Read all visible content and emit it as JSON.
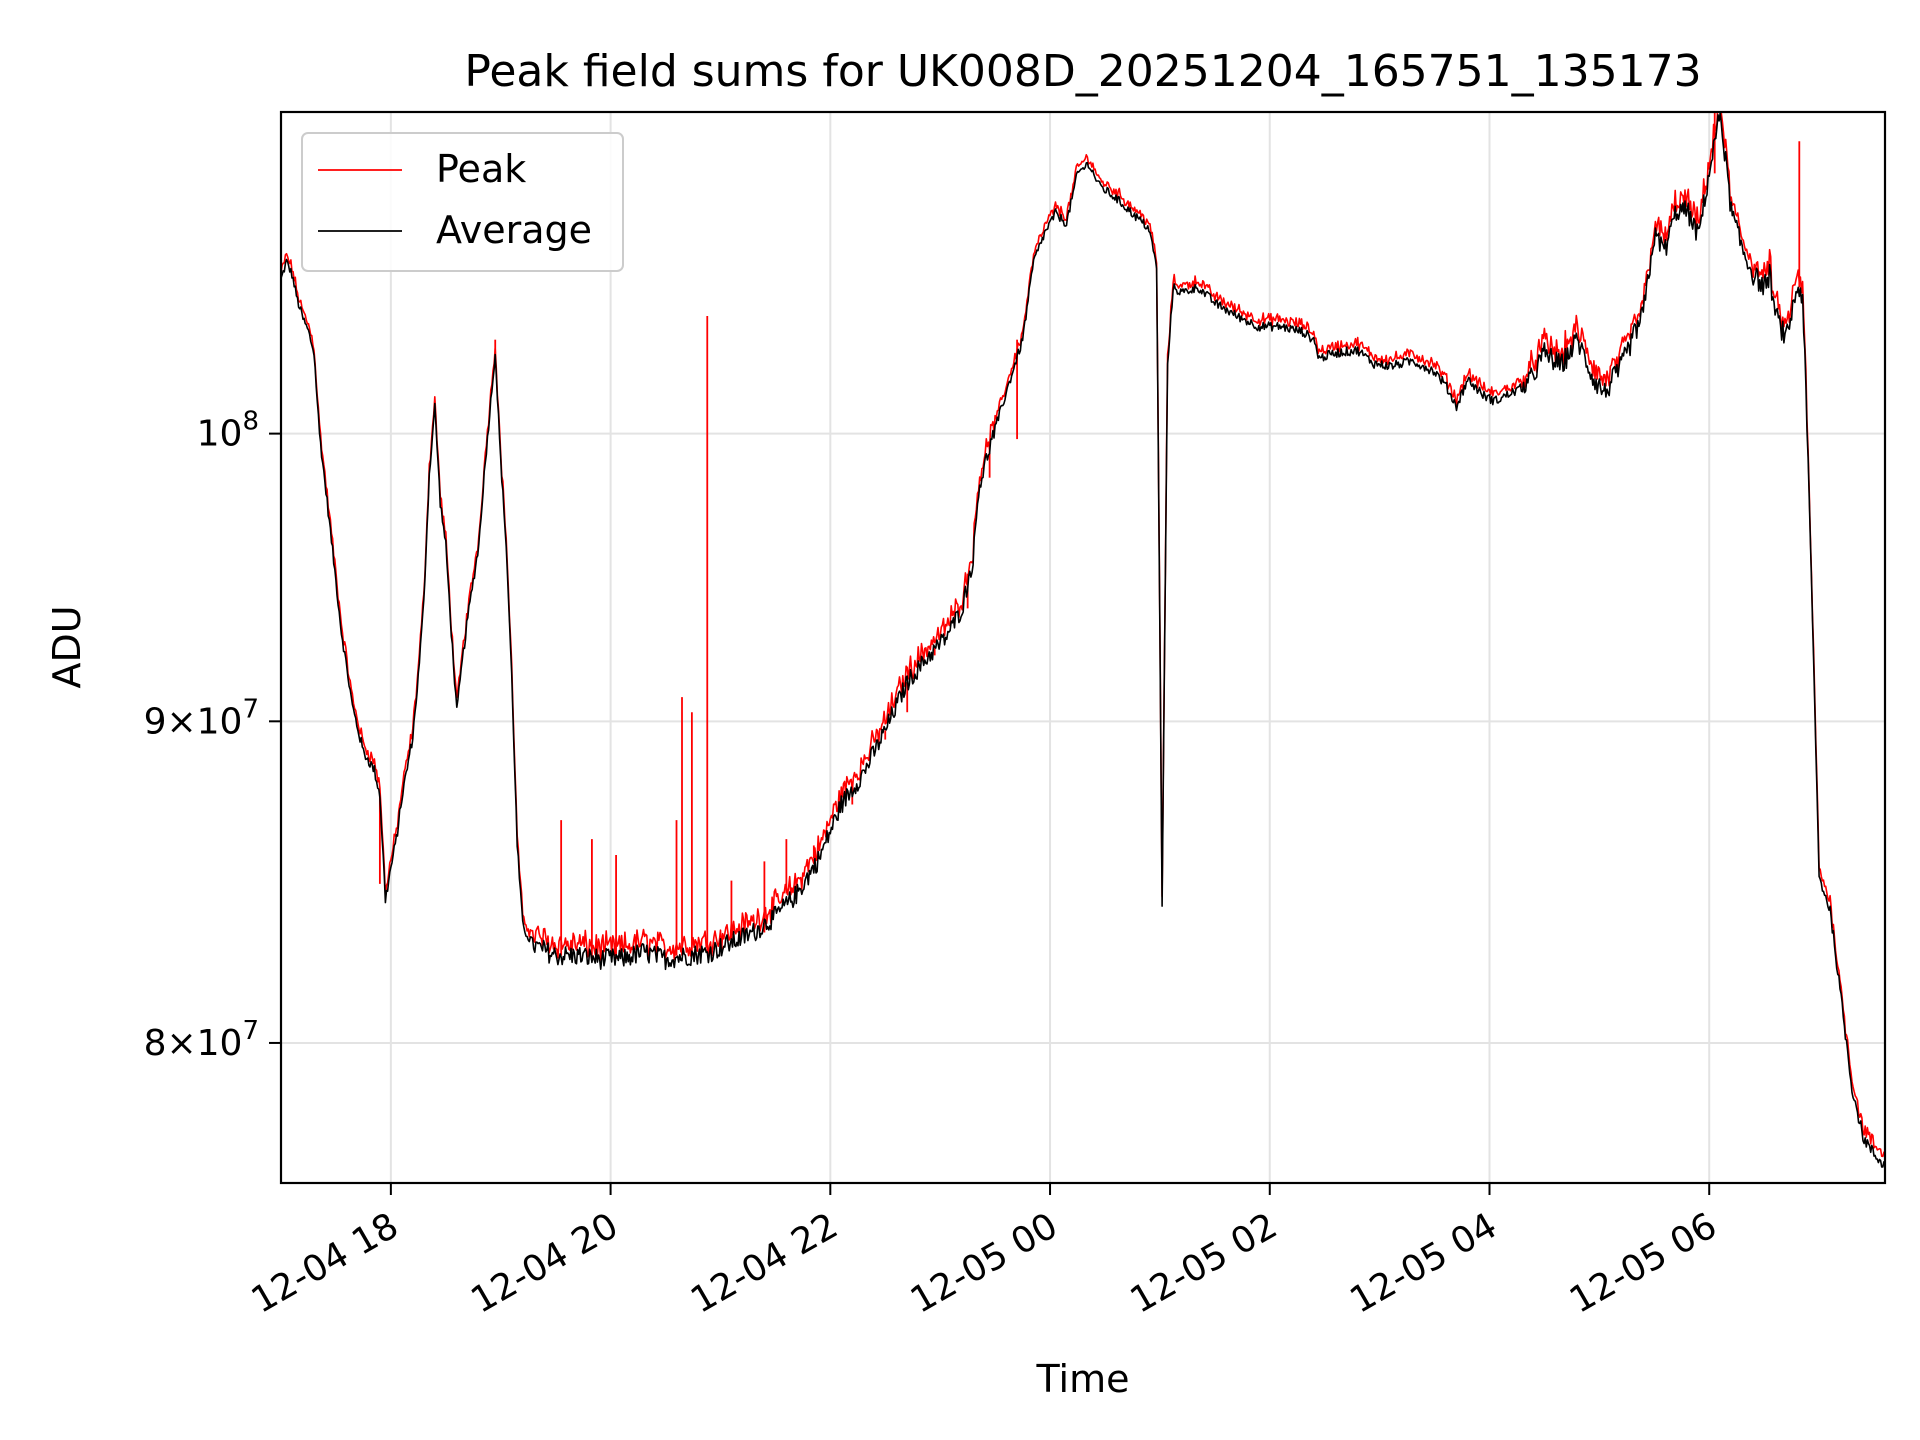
{
  "chart_data": {
    "type": "line",
    "title": "Peak field sums for UK008D_20251204_165751_135173",
    "xlabel": "Time",
    "ylabel": "ADU",
    "yscale": "log",
    "grid": true,
    "legend_position": "upper-left",
    "xlim_hours": [
      17.0,
      31.6
    ],
    "ylim": [
      76000000,
      112500000
    ],
    "x_ticks": [
      {
        "hour": 18,
        "label": "12-04 18"
      },
      {
        "hour": 20,
        "label": "12-04 20"
      },
      {
        "hour": 22,
        "label": "12-04 22"
      },
      {
        "hour": 24,
        "label": "12-05 00"
      },
      {
        "hour": 26,
        "label": "12-05 02"
      },
      {
        "hour": 28,
        "label": "12-05 04"
      },
      {
        "hour": 30,
        "label": "12-05 06"
      }
    ],
    "y_ticks": [
      {
        "value": 80000000,
        "mantissa": "8",
        "exp": "7"
      },
      {
        "value": 90000000,
        "mantissa": "9",
        "exp": "7"
      },
      {
        "value": 100000000,
        "mantissa": "",
        "exp": "8"
      }
    ],
    "series": [
      {
        "name": "Peak",
        "color": "#ff0000"
      },
      {
        "name": "Average",
        "color": "#000000"
      }
    ],
    "average_points": [
      [
        17.0,
        105.8
      ],
      [
        17.05,
        106.5
      ],
      [
        17.1,
        106.0
      ],
      [
        17.15,
        105.0
      ],
      [
        17.2,
        104.3
      ],
      [
        17.25,
        103.8
      ],
      [
        17.3,
        103.0
      ],
      [
        17.35,
        100.0
      ],
      [
        17.45,
        96.5
      ],
      [
        17.55,
        93.0
      ],
      [
        17.65,
        90.5
      ],
      [
        17.75,
        89.0
      ],
      [
        17.85,
        88.4
      ],
      [
        17.9,
        87.6
      ],
      [
        17.95,
        84.3
      ],
      [
        18.0,
        85.3
      ],
      [
        18.05,
        86.2
      ],
      [
        18.1,
        87.5
      ],
      [
        18.2,
        89.5
      ],
      [
        18.25,
        91.5
      ],
      [
        18.3,
        94.0
      ],
      [
        18.35,
        98.5
      ],
      [
        18.4,
        101.0
      ],
      [
        18.45,
        97.5
      ],
      [
        18.5,
        96.0
      ],
      [
        18.55,
        93.0
      ],
      [
        18.6,
        90.3
      ],
      [
        18.65,
        92.0
      ],
      [
        18.7,
        93.5
      ],
      [
        18.8,
        96.0
      ],
      [
        18.85,
        98.5
      ],
      [
        18.95,
        103.0
      ],
      [
        19.0,
        99.0
      ],
      [
        19.05,
        96.0
      ],
      [
        19.1,
        91.5
      ],
      [
        19.15,
        86.0
      ],
      [
        19.2,
        83.5
      ],
      [
        19.3,
        82.9
      ],
      [
        19.5,
        82.6
      ],
      [
        19.7,
        82.6
      ],
      [
        19.9,
        82.5
      ],
      [
        20.1,
        82.5
      ],
      [
        20.3,
        82.7
      ],
      [
        20.5,
        82.5
      ],
      [
        20.7,
        82.6
      ],
      [
        20.9,
        82.7
      ],
      [
        21.1,
        83.0
      ],
      [
        21.3,
        83.3
      ],
      [
        21.5,
        83.8
      ],
      [
        21.7,
        84.5
      ],
      [
        21.9,
        85.6
      ],
      [
        22.1,
        87.3
      ],
      [
        22.3,
        88.3
      ],
      [
        22.5,
        89.7
      ],
      [
        22.7,
        91.3
      ],
      [
        22.9,
        92.2
      ],
      [
        23.05,
        92.8
      ],
      [
        23.2,
        93.8
      ],
      [
        23.3,
        95.5
      ],
      [
        23.35,
        98.0
      ],
      [
        23.45,
        99.5
      ],
      [
        23.6,
        101.5
      ],
      [
        23.75,
        103.5
      ],
      [
        23.85,
        106.5
      ],
      [
        23.95,
        107.6
      ],
      [
        24.05,
        108.4
      ],
      [
        24.15,
        108.0
      ],
      [
        24.25,
        110.0
      ],
      [
        24.35,
        110.4
      ],
      [
        24.45,
        109.5
      ],
      [
        24.6,
        109.0
      ],
      [
        24.75,
        108.4
      ],
      [
        24.9,
        107.8
      ],
      [
        24.97,
        106.3
      ],
      [
        25.02,
        84.0
      ],
      [
        25.07,
        102.5
      ],
      [
        25.12,
        105.5
      ],
      [
        25.2,
        105.3
      ],
      [
        25.35,
        105.5
      ],
      [
        25.5,
        104.9
      ],
      [
        25.7,
        104.4
      ],
      [
        25.9,
        104.0
      ],
      [
        26.1,
        104.0
      ],
      [
        26.3,
        103.8
      ],
      [
        26.4,
        103.5
      ],
      [
        26.45,
        102.8
      ],
      [
        26.6,
        103.0
      ],
      [
        26.8,
        103.1
      ],
      [
        26.95,
        102.6
      ],
      [
        27.1,
        102.5
      ],
      [
        27.3,
        102.7
      ],
      [
        27.5,
        102.3
      ],
      [
        27.6,
        101.8
      ],
      [
        27.7,
        101.0
      ],
      [
        27.8,
        102.0
      ],
      [
        27.95,
        101.4
      ],
      [
        28.05,
        101.2
      ],
      [
        28.2,
        101.5
      ],
      [
        28.35,
        101.8
      ],
      [
        28.5,
        103.0
      ],
      [
        28.65,
        102.5
      ],
      [
        28.8,
        103.5
      ],
      [
        28.95,
        102.0
      ],
      [
        29.05,
        101.5
      ],
      [
        29.2,
        102.5
      ],
      [
        29.3,
        103.5
      ],
      [
        29.4,
        104.5
      ],
      [
        29.5,
        107.5
      ],
      [
        29.6,
        107.0
      ],
      [
        29.7,
        108.5
      ],
      [
        29.8,
        108.5
      ],
      [
        29.9,
        107.5
      ],
      [
        30.0,
        110.0
      ],
      [
        30.1,
        112.5
      ],
      [
        30.2,
        108.5
      ],
      [
        30.3,
        107.0
      ],
      [
        30.4,
        106.0
      ],
      [
        30.5,
        105.5
      ],
      [
        30.55,
        106.0
      ],
      [
        30.6,
        104.5
      ],
      [
        30.7,
        103.5
      ],
      [
        30.8,
        105.5
      ],
      [
        30.85,
        105.2
      ],
      [
        30.9,
        99.0
      ],
      [
        30.95,
        92.0
      ],
      [
        31.0,
        85.0
      ],
      [
        31.1,
        84.0
      ],
      [
        31.2,
        81.3
      ],
      [
        31.3,
        78.7
      ],
      [
        31.4,
        77.3
      ],
      [
        31.5,
        76.8
      ],
      [
        31.6,
        76.5
      ]
    ],
    "peak_spikes": [
      {
        "hour": 17.9,
        "value": 84.8
      },
      {
        "hour": 18.4,
        "value": 101.0
      },
      {
        "hour": 18.95,
        "value": 103.5
      },
      {
        "hour": 19.55,
        "value": 86.8
      },
      {
        "hour": 19.83,
        "value": 86.2
      },
      {
        "hour": 20.05,
        "value": 85.7
      },
      {
        "hour": 20.6,
        "value": 86.8
      },
      {
        "hour": 20.65,
        "value": 90.8
      },
      {
        "hour": 20.74,
        "value": 90.3
      },
      {
        "hour": 20.88,
        "value": 104.4
      },
      {
        "hour": 21.1,
        "value": 84.9
      },
      {
        "hour": 21.4,
        "value": 85.5
      },
      {
        "hour": 21.6,
        "value": 86.2
      },
      {
        "hour": 21.85,
        "value": 86.0
      },
      {
        "hour": 22.2,
        "value": 87.9
      },
      {
        "hour": 22.5,
        "value": 89.4
      },
      {
        "hour": 22.7,
        "value": 90.3
      },
      {
        "hour": 22.95,
        "value": 92.5
      },
      {
        "hour": 23.25,
        "value": 95.0
      },
      {
        "hour": 23.45,
        "value": 98.4
      },
      {
        "hour": 23.7,
        "value": 99.8
      },
      {
        "hour": 30.05,
        "value": 112.5
      },
      {
        "hour": 30.82,
        "value": 111.3
      }
    ]
  }
}
